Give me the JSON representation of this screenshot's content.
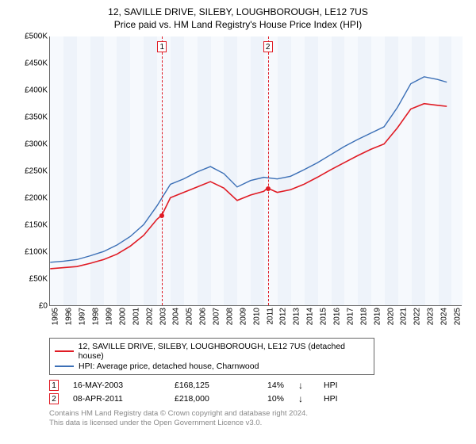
{
  "titles": {
    "line1": "12, SAVILLE DRIVE, SILEBY, LOUGHBOROUGH, LE12 7US",
    "line2": "Price paid vs. HM Land Registry's House Price Index (HPI)"
  },
  "chart": {
    "type": "line",
    "background_color": "#ffffff",
    "band_color_a": "#eef3fa",
    "band_color_b": "#f6f9fd",
    "axis_color": "#666666",
    "marker_border_color": "#e01b24",
    "x_years": [
      1995,
      1996,
      1997,
      1998,
      1999,
      2000,
      2001,
      2002,
      2003,
      2004,
      2005,
      2006,
      2007,
      2008,
      2009,
      2010,
      2011,
      2012,
      2013,
      2014,
      2015,
      2016,
      2017,
      2018,
      2019,
      2020,
      2021,
      2022,
      2023,
      2024,
      2025
    ],
    "x_min": 1995,
    "x_max": 2025.8,
    "y_min": 0,
    "y_max": 500,
    "y_ticks": [
      0,
      50,
      100,
      150,
      200,
      250,
      300,
      350,
      400,
      450,
      500
    ],
    "y_tick_prefix": "£",
    "y_tick_suffix": "K",
    "series": [
      {
        "name": "price_paid",
        "label": "12, SAVILLE DRIVE, SILEBY, LOUGHBOROUGH, LE12 7US (detached house)",
        "color": "#e01b24",
        "width": 1.6,
        "x": [
          1995,
          1996,
          1997,
          1998,
          1999,
          2000,
          2001,
          2002,
          2003,
          2003.37,
          2004,
          2005,
          2006,
          2007,
          2008,
          2009,
          2010,
          2011,
          2011.27,
          2012,
          2013,
          2014,
          2015,
          2016,
          2017,
          2018,
          2019,
          2020,
          2021,
          2022,
          2023,
          2024,
          2024.7
        ],
        "y": [
          68,
          70,
          72,
          78,
          85,
          95,
          110,
          130,
          160,
          168,
          200,
          210,
          220,
          230,
          218,
          195,
          205,
          212,
          218,
          210,
          215,
          225,
          238,
          252,
          265,
          278,
          290,
          300,
          330,
          365,
          375,
          372,
          370
        ]
      },
      {
        "name": "hpi",
        "label": "HPI: Average price, detached house, Charnwood",
        "color": "#3b6fb6",
        "width": 1.4,
        "x": [
          1995,
          1996,
          1997,
          1998,
          1999,
          2000,
          2001,
          2002,
          2003,
          2004,
          2005,
          2006,
          2007,
          2008,
          2009,
          2010,
          2011,
          2012,
          2013,
          2014,
          2015,
          2016,
          2017,
          2018,
          2019,
          2020,
          2021,
          2022,
          2023,
          2024,
          2024.7
        ],
        "y": [
          80,
          82,
          85,
          92,
          100,
          112,
          128,
          150,
          185,
          225,
          235,
          248,
          258,
          245,
          220,
          232,
          238,
          235,
          240,
          252,
          265,
          280,
          295,
          308,
          320,
          332,
          368,
          412,
          425,
          420,
          415
        ]
      }
    ],
    "markers": [
      {
        "n": "1",
        "x": 2003.37,
        "y": 168
      },
      {
        "n": "2",
        "x": 2011.27,
        "y": 218
      }
    ]
  },
  "legend": {
    "row1_label": "12, SAVILLE DRIVE, SILEBY, LOUGHBOROUGH, LE12 7US (detached house)",
    "row2_label": "HPI: Average price, detached house, Charnwood"
  },
  "transactions": [
    {
      "n": "1",
      "date": "16-MAY-2003",
      "price": "£168,125",
      "pct": "14%",
      "arrow": "↓",
      "suffix": "HPI"
    },
    {
      "n": "2",
      "date": "08-APR-2011",
      "price": "£218,000",
      "pct": "10%",
      "arrow": "↓",
      "suffix": "HPI"
    }
  ],
  "footer": {
    "line1": "Contains HM Land Registry data © Crown copyright and database right 2024.",
    "line2": "This data is licensed under the Open Government Licence v3.0."
  },
  "style": {
    "title_fontsize": 12,
    "tick_fontsize": 10,
    "legend_fontsize": 10.5,
    "footer_color": "#888888"
  }
}
